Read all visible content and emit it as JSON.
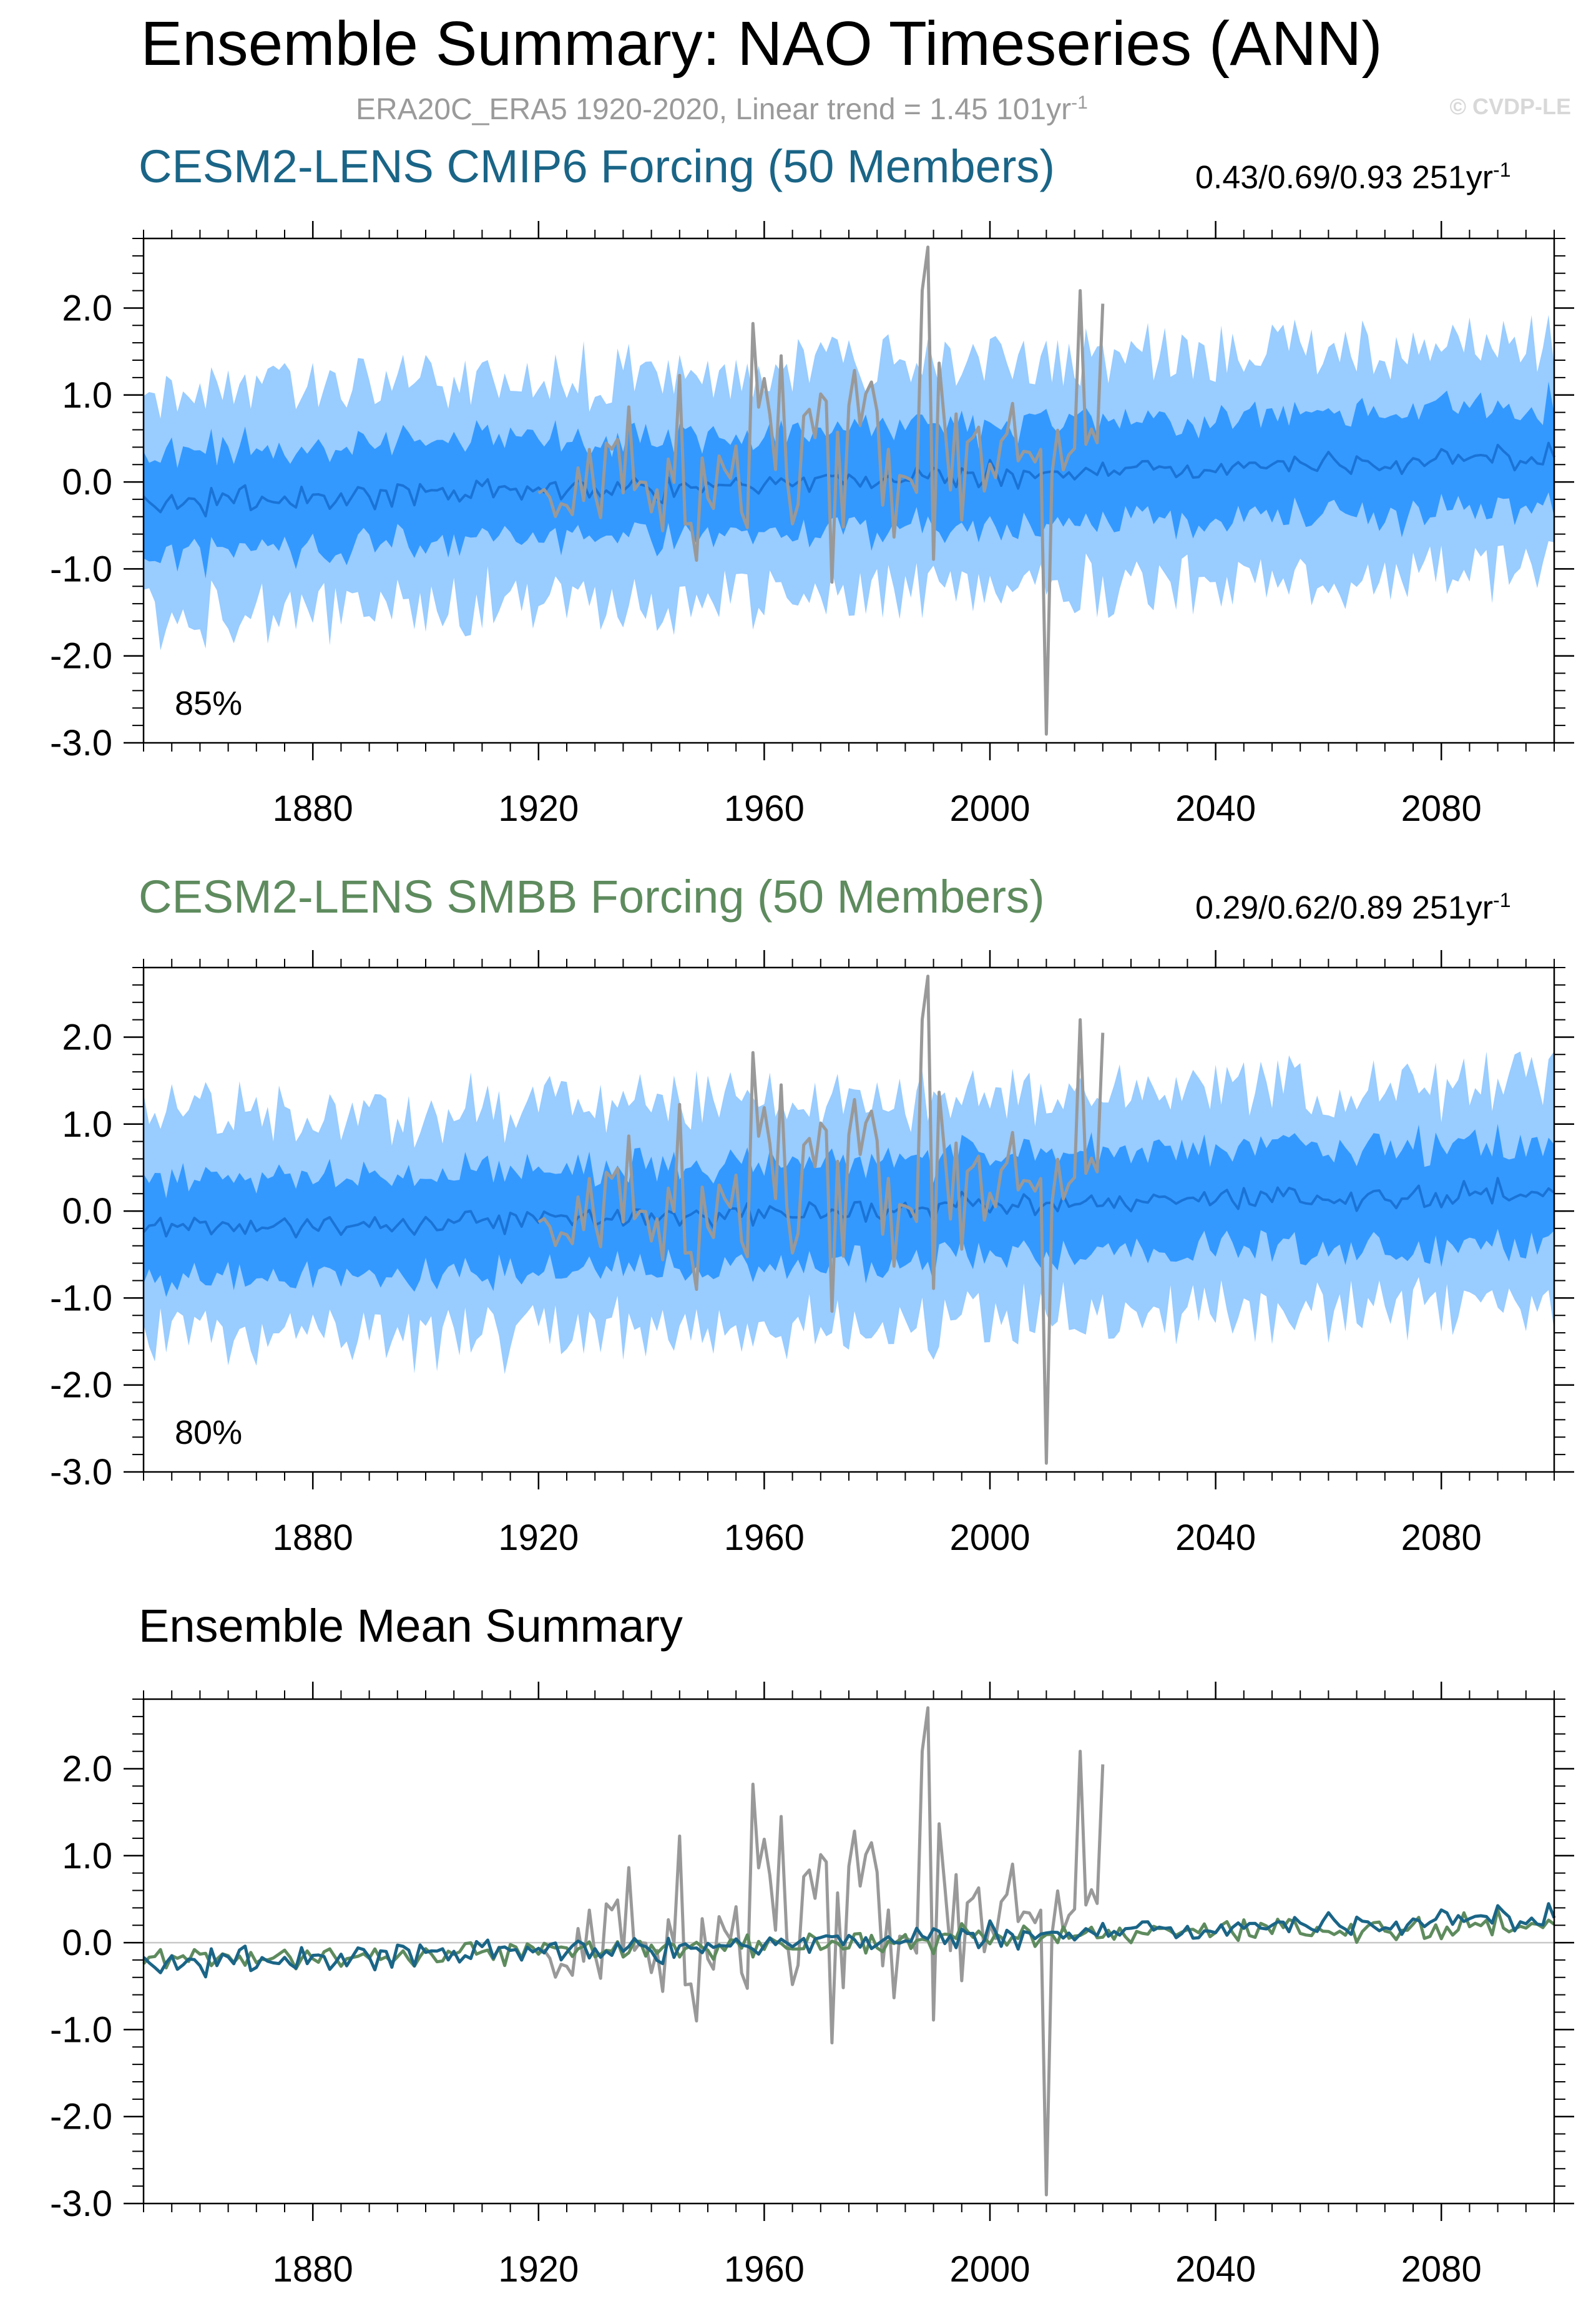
{
  "title": "Ensemble Summary: NAO Timeseries (ANN)",
  "subtitle": {
    "text": "ERA20C_ERA5 1920-2020, Linear trend = 1.45 101yr",
    "sup": "-1"
  },
  "copyright": "© CVDP-LE",
  "colors": {
    "band_outer": "#99ccff",
    "band_inner": "#3399ff",
    "ens_line": "#1a73d6",
    "obs": "#999999",
    "cmip6": "#1a6587",
    "smbb": "#5e8b5e",
    "zero_line": "#c8c8c8"
  },
  "panels": [
    {
      "title": "CESM2-LENS CMIP6 Forcing (50 Members)",
      "title_color": "#1a6587",
      "stat": "0.43/0.69/0.93 251yr",
      "stat_sup": "-1",
      "percent": "85%"
    },
    {
      "title": "CESM2-LENS SMBB Forcing (50 Members)",
      "title_color": "#5e8b5e",
      "stat": "0.29/0.62/0.89 251yr",
      "stat_sup": "-1",
      "percent": "80%"
    },
    {
      "title": "Ensemble Mean Summary",
      "title_color": "#000000",
      "stat": "",
      "stat_sup": "",
      "percent": ""
    }
  ],
  "chart_data": [
    {
      "type": "area",
      "title": "CESM2-LENS CMIP6 Forcing (50 Members)",
      "x_range": [
        1850,
        2100
      ],
      "ylim": [
        -3.0,
        2.8
      ],
      "x_tick_labels": [
        "1880",
        "1920",
        "1960",
        "2000",
        "2040",
        "2080"
      ],
      "y_tick_labels": [
        "2.0",
        "1.0",
        "0.0",
        "-1.0",
        "-2.0",
        "-3.0"
      ],
      "series": [
        {
          "name": "CESM2-LENS CMIP6 ensemble mean",
          "x_range": [
            1850,
            2100
          ],
          "values": {
            "start": -0.25,
            "end": 0.3
          }
        },
        {
          "name": "ERA20C_ERA5 observations",
          "x_range": [
            1920,
            2020
          ],
          "peaks": {
            "max": {
              "x": 1989,
              "y": 2.7
            },
            "min": {
              "x": 2010,
              "y": -2.9
            }
          }
        }
      ],
      "bands": [
        {
          "name": "outer spread",
          "half_width": 1.35
        },
        {
          "name": "inner spread",
          "half_width": 0.6
        }
      ],
      "annotation": "85%",
      "trend_annotation": "0.43/0.69/0.93 251yr-1"
    },
    {
      "type": "area",
      "title": "CESM2-LENS SMBB Forcing (50 Members)",
      "x_range": [
        1850,
        2100
      ],
      "ylim": [
        -3.0,
        2.8
      ],
      "x_tick_labels": [
        "1880",
        "1920",
        "1960",
        "2000",
        "2040",
        "2080"
      ],
      "y_tick_labels": [
        "2.0",
        "1.0",
        "0.0",
        "-1.0",
        "-2.0",
        "-3.0"
      ],
      "series": [
        {
          "name": "CESM2-LENS SMBB ensemble mean",
          "x_range": [
            1850,
            2100
          ],
          "values": {
            "start": -0.22,
            "end": 0.22
          }
        },
        {
          "name": "ERA20C_ERA5 observations",
          "x_range": [
            1920,
            2020
          ],
          "peaks": {
            "max": {
              "x": 1989,
              "y": 2.7
            },
            "min": {
              "x": 2010,
              "y": -2.9
            }
          }
        }
      ],
      "bands": [
        {
          "name": "outer spread",
          "half_width": 1.35
        },
        {
          "name": "inner spread",
          "half_width": 0.6
        }
      ],
      "annotation": "80%",
      "trend_annotation": "0.29/0.62/0.89 251yr-1"
    },
    {
      "type": "line",
      "title": "Ensemble Mean Summary",
      "x_range": [
        1850,
        2100
      ],
      "ylim": [
        -3.0,
        2.8
      ],
      "x_tick_labels": [
        "1880",
        "1920",
        "1960",
        "2000",
        "2040",
        "2080"
      ],
      "y_tick_labels": [
        "2.0",
        "1.0",
        "0.0",
        "-1.0",
        "-2.0",
        "-3.0"
      ],
      "series": [
        {
          "name": "CESM2-LENS CMIP6 ensemble mean",
          "color": "#1a6587",
          "x_range": [
            1850,
            2100
          ],
          "values": {
            "start": -0.25,
            "end": 0.3
          }
        },
        {
          "name": "CESM2-LENS SMBB ensemble mean",
          "color": "#5e8b5e",
          "x_range": [
            1850,
            2100
          ],
          "values": {
            "start": -0.22,
            "end": 0.22
          }
        },
        {
          "name": "ERA20C_ERA5 observations",
          "color": "#999999",
          "x_range": [
            1920,
            2020
          ],
          "peaks": {
            "max": {
              "x": 1989,
              "y": 2.7
            },
            "min": {
              "x": 2010,
              "y": -2.9
            }
          }
        }
      ]
    }
  ]
}
